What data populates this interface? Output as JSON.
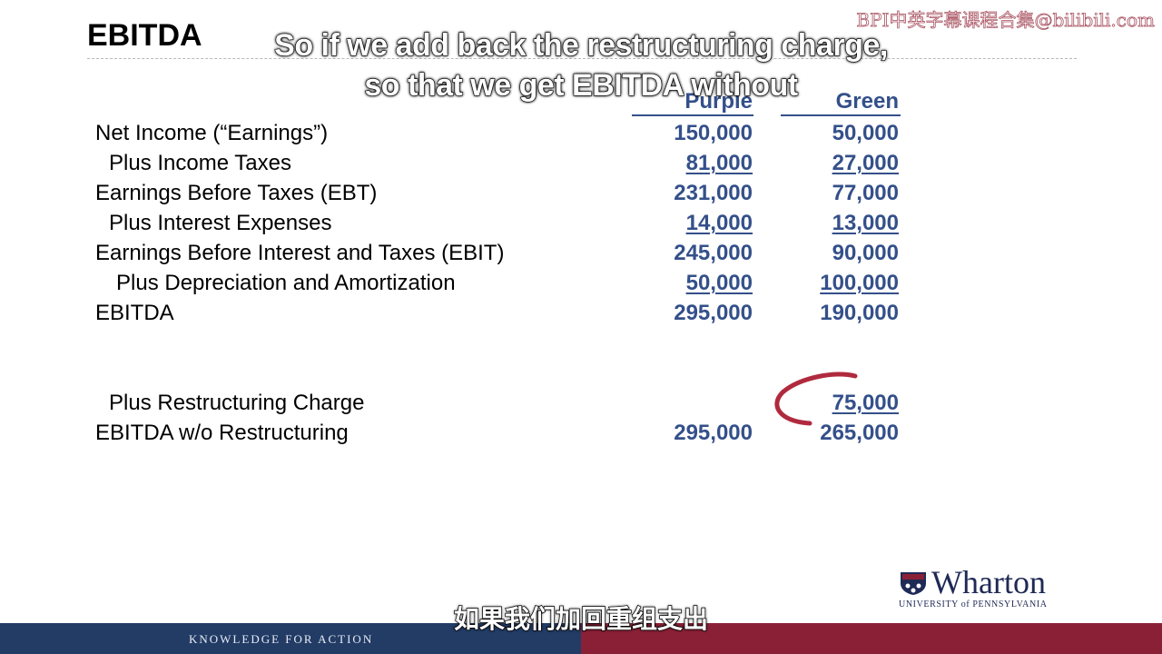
{
  "slide": {
    "title": "EBITDA",
    "watermark": "BPI中英字幕课程合集@bilibili.com",
    "caption_en": "So if we add back the restructuring charge, so that we get EBITDA without",
    "caption_zh": "如果我们加回重组支出"
  },
  "columns": [
    "Purple",
    "Green"
  ],
  "rows": [
    {
      "label": "Net Income (“Earnings”)",
      "purple": "150,000",
      "green": "50,000"
    },
    {
      "label": "Plus Income Taxes",
      "purple": "81,000",
      "green": "27,000"
    },
    {
      "label": "Earnings Before Taxes (EBT)",
      "purple": "231,000",
      "green": "77,000"
    },
    {
      "label": "Plus Interest Expenses",
      "purple": "14,000",
      "green": "13,000"
    },
    {
      "label": "Earnings Before Interest and Taxes (EBIT)",
      "purple": "245,000",
      "green": "90,000"
    },
    {
      "label": "Plus Depreciation and Amortization",
      "purple": "50,000",
      "green": "100,000"
    },
    {
      "label": "EBITDA",
      "purple": "295,000",
      "green": "190,000"
    }
  ],
  "restructuring": [
    {
      "label": "Plus Restructuring Charge",
      "purple": "",
      "green": "75,000"
    },
    {
      "label": "EBITDA w/o Restructuring",
      "purple": "295,000",
      "green": "265,000"
    }
  ],
  "footer": {
    "tagline": "KNOWLEDGE FOR ACTION",
    "logo_word": "Wharton",
    "logo_sub": "UNIVERSITY of PENNSYLVANIA"
  },
  "colors": {
    "accent_blue": "#34508a",
    "footer_navy": "#223c66",
    "footer_maroon": "#8a2036",
    "pen_mark": "#b02a3e"
  }
}
